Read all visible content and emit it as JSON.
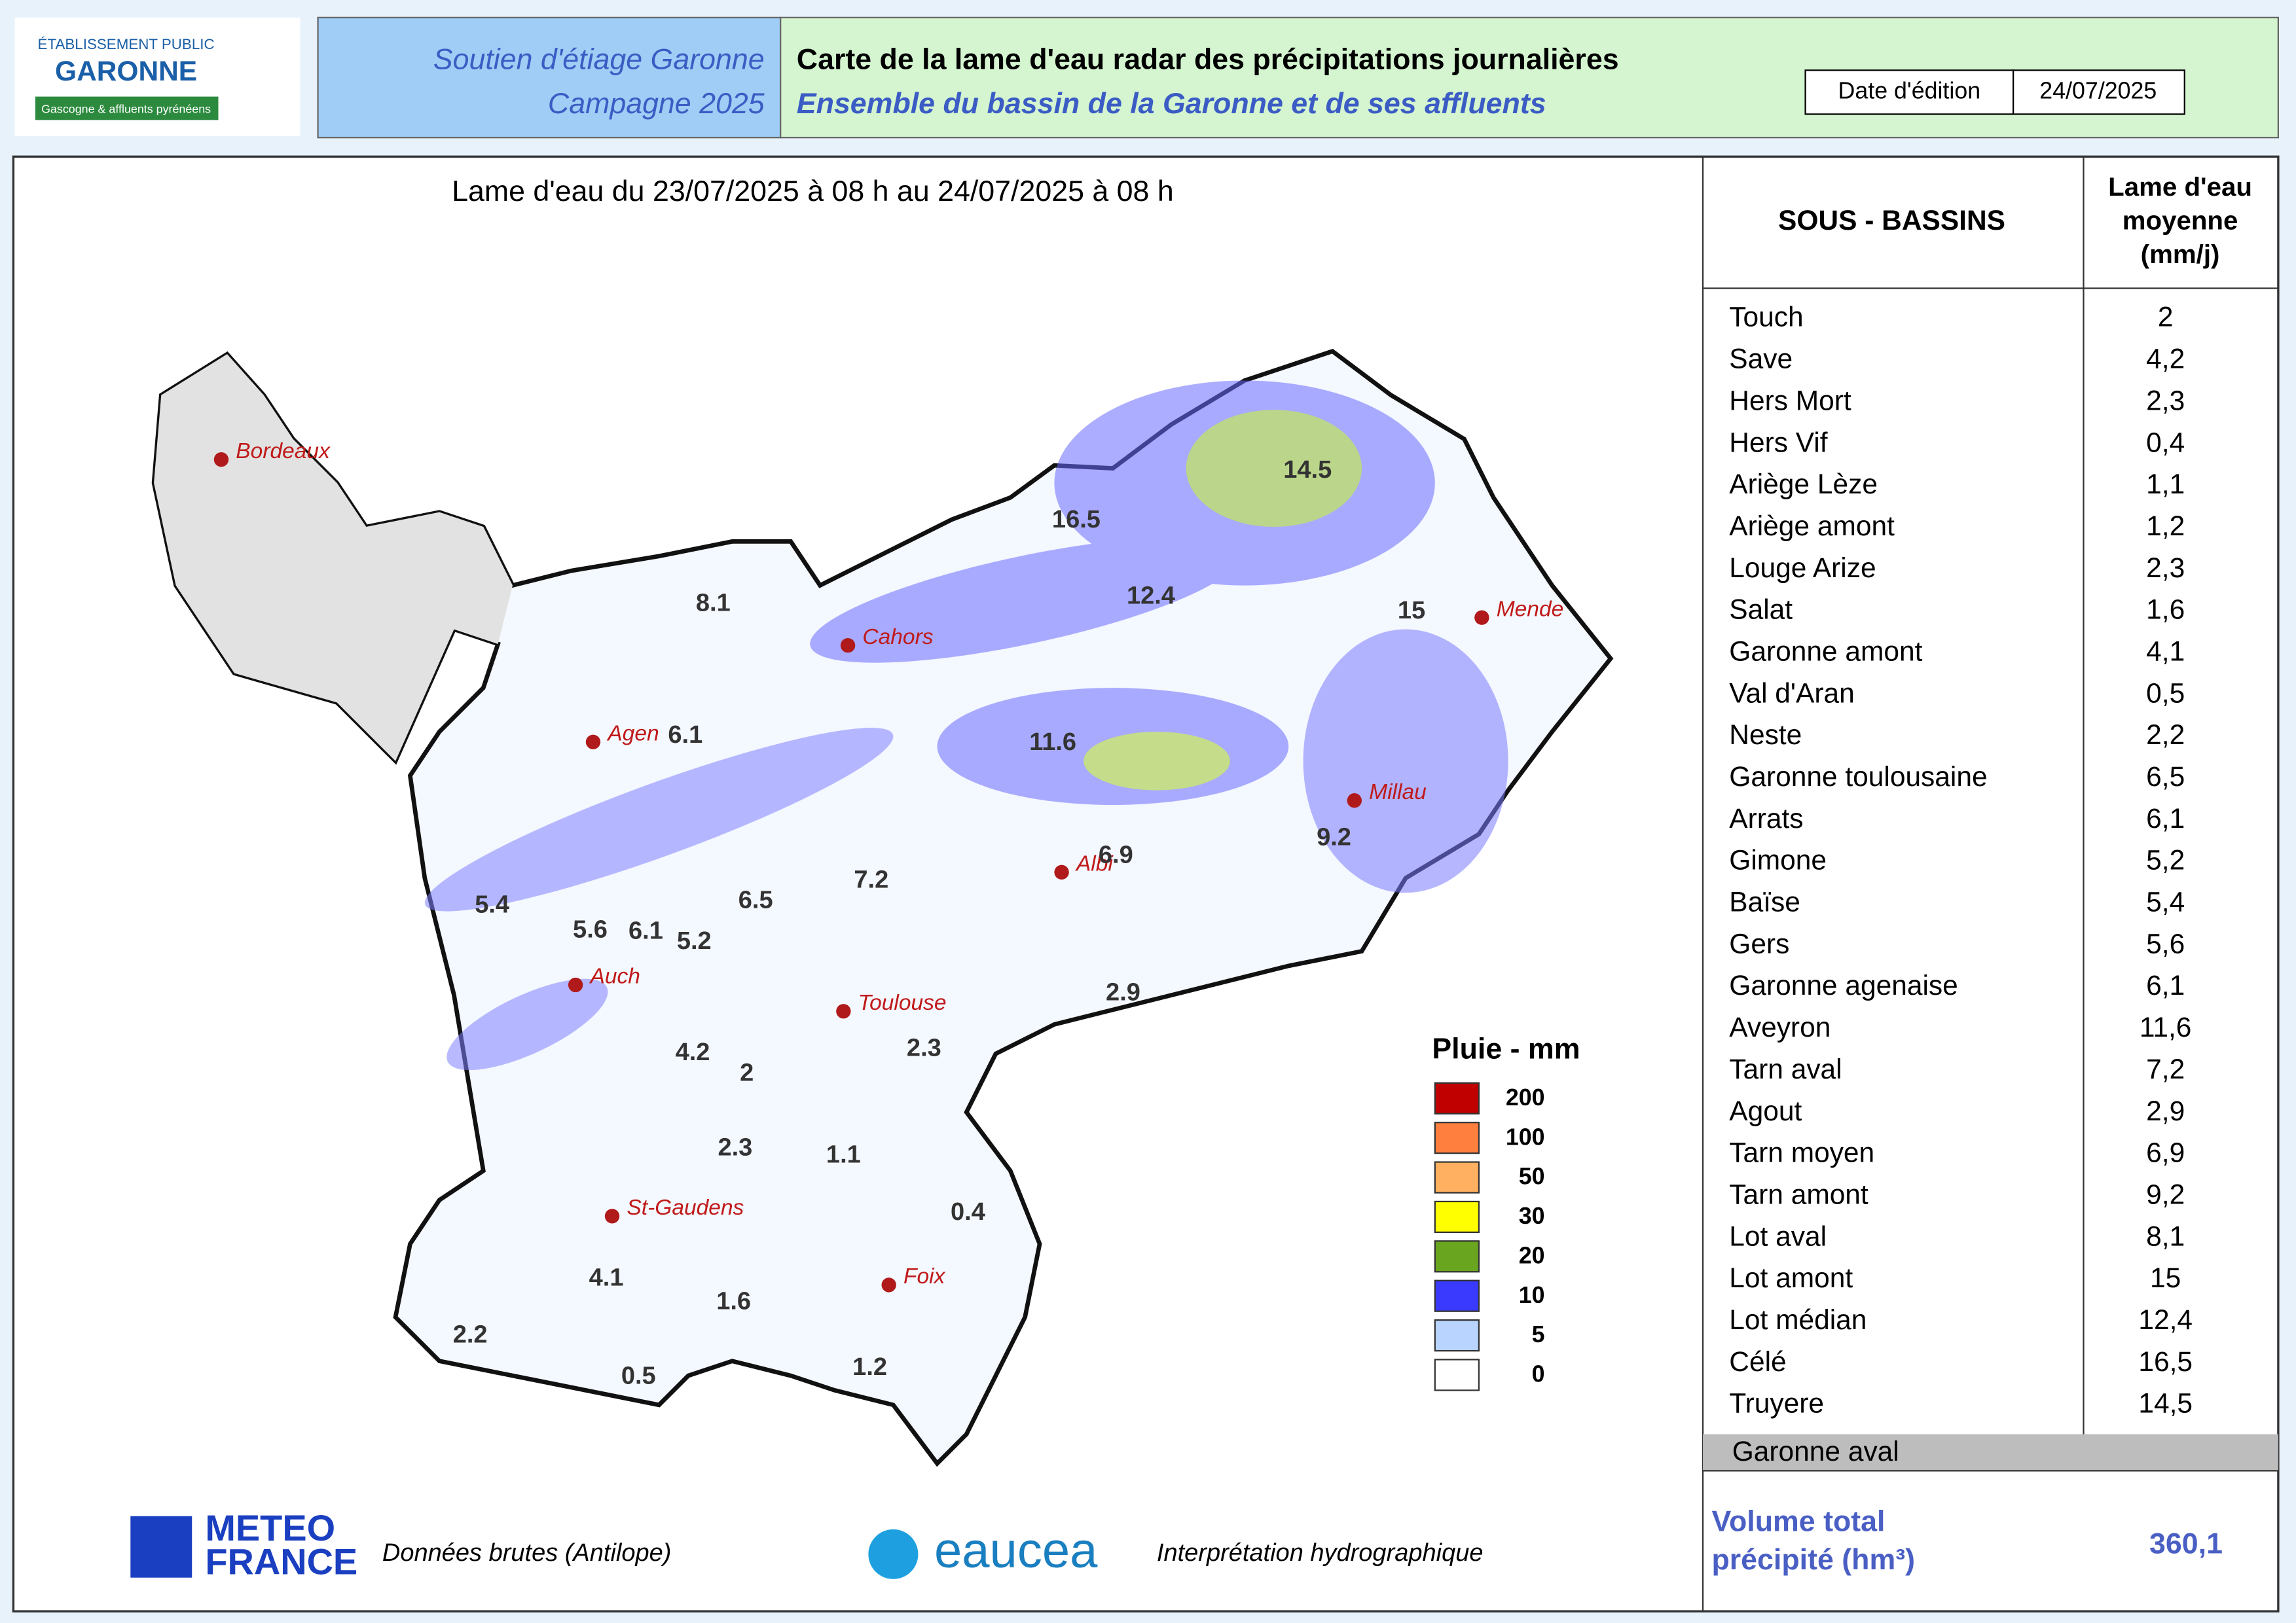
{
  "header": {
    "logo_line1": "ÉTABLISSEMENT PUBLIC",
    "logo_line2": "GARONNE",
    "logo_line3": "Gascogne & affluents pyrénéens",
    "left_line1": "Soutien d'étiage Garonne",
    "left_line2": "Campagne 2025",
    "title": "Carte de la lame d'eau radar des précipitations journalières",
    "subtitle": "Ensemble du bassin de la Garonne et de ses affluents",
    "date_label": "Date d'édition",
    "date_value": "24/07/2025"
  },
  "map": {
    "period": "Lame d'eau du 23/07/2025  à 08 h au  24/07/2025  à 08 h",
    "cities": [
      "Bordeaux",
      "Cahors",
      "Agen",
      "Mende",
      "Millau",
      "Albi",
      "Auch",
      "Toulouse",
      "St-Gaudens",
      "Foix"
    ],
    "basin_values": [
      14.5,
      16.5,
      12.4,
      15,
      8.1,
      6.1,
      11.6,
      9.2,
      6.9,
      7.2,
      6.5,
      5.4,
      5.6,
      6.1,
      5.2,
      2.9,
      4.2,
      2,
      2.3,
      2.3,
      1.1,
      0.4,
      4.1,
      1.6,
      2.2,
      0.5,
      1.2
    ],
    "legend": {
      "title": "Pluie - mm",
      "values": [
        200,
        100,
        50,
        30,
        20,
        10,
        5,
        0
      ],
      "colors": [
        "#c00000",
        "#ff7f3f",
        "#ffb060",
        "#ffff00",
        "#6aa520",
        "#3a3aff",
        "#b8d4ff",
        "#ffffff"
      ]
    }
  },
  "table": {
    "header_left": "SOUS - BASSINS",
    "header_right": [
      "Lame d'eau",
      "moyenne",
      "(mm/j)"
    ],
    "rows": [
      [
        "Touch",
        "2"
      ],
      [
        "Save",
        "4,2"
      ],
      [
        "Hers Mort",
        "2,3"
      ],
      [
        "Hers Vif",
        "0,4"
      ],
      [
        "Ariège Lèze",
        "1,1"
      ],
      [
        "Ariège amont",
        "1,2"
      ],
      [
        "Louge Arize",
        "2,3"
      ],
      [
        "Salat",
        "1,6"
      ],
      [
        "Garonne amont",
        "4,1"
      ],
      [
        "Val d'Aran",
        "0,5"
      ],
      [
        "Neste",
        "2,2"
      ],
      [
        "Garonne toulousaine",
        "6,5"
      ],
      [
        "Arrats",
        "6,1"
      ],
      [
        "Gimone",
        "5,2"
      ],
      [
        "Baïse",
        "5,4"
      ],
      [
        "Gers",
        "5,6"
      ],
      [
        "Garonne agenaise",
        "6,1"
      ],
      [
        "Aveyron",
        "11,6"
      ],
      [
        "Tarn aval",
        "7,2"
      ],
      [
        "Agout",
        "2,9"
      ],
      [
        "Tarn moyen",
        "6,9"
      ],
      [
        "Tarn amont",
        "9,2"
      ],
      [
        "Lot aval",
        "8,1"
      ],
      [
        "Lot amont",
        "15"
      ],
      [
        "Lot médian",
        "12,4"
      ],
      [
        "Célé",
        "16,5"
      ],
      [
        "Truyere",
        "14,5"
      ]
    ],
    "highlighted_row": "Garonne aval",
    "total_label": [
      "Volume total",
      "précipité (hm³)"
    ],
    "total_value": "360,1"
  },
  "footer": {
    "meteo_line1": "METEO",
    "meteo_line2": "FRANCE",
    "meteo_note": "Données brutes (Antilope)",
    "eaucea": "eaucea",
    "eaucea_note": "Interprétation hydrographique"
  }
}
